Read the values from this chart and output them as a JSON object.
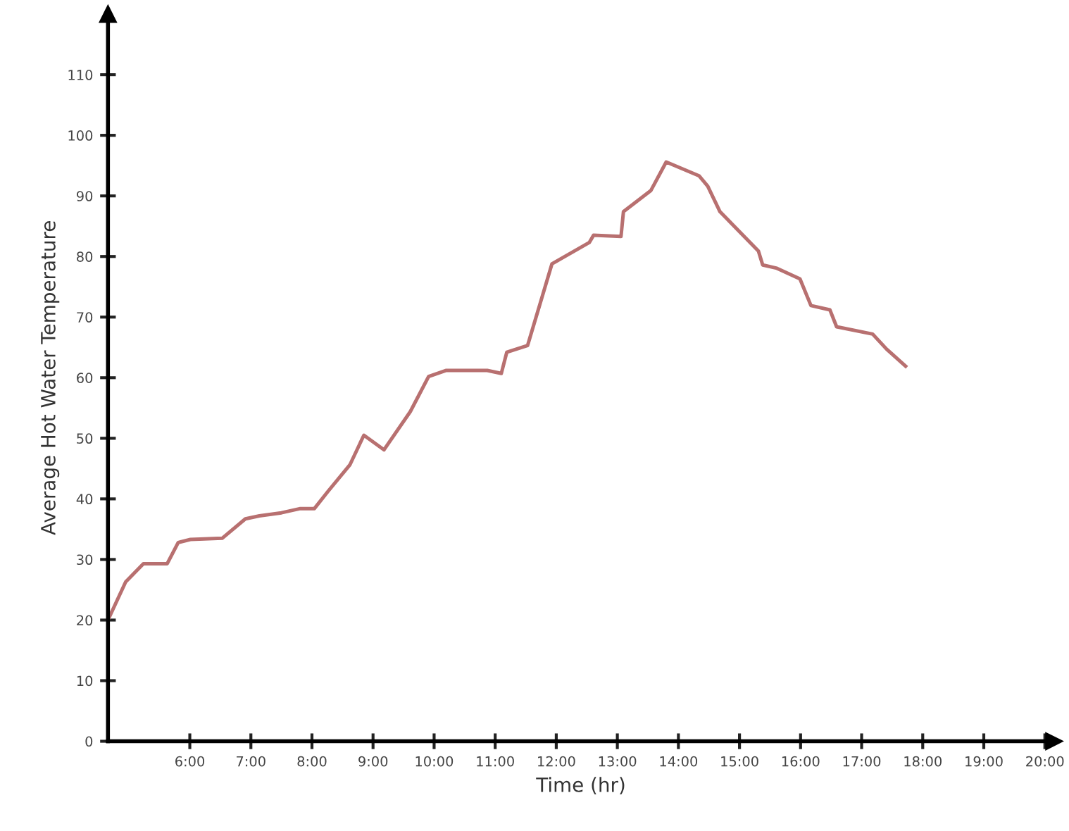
{
  "chart_data": {
    "type": "line",
    "xlabel": "Time (hr)",
    "ylabel": "Average Hot Water Temperature",
    "x": [
      4.66,
      4.95,
      5.24,
      5.63,
      5.81,
      6.01,
      6.53,
      6.91,
      7.14,
      7.5,
      7.81,
      8.04,
      8.26,
      8.62,
      8.85,
      9.18,
      9.61,
      9.91,
      10.2,
      10.87,
      11.1,
      11.19,
      11.53,
      11.93,
      12.54,
      12.61,
      13.06,
      13.1,
      13.55,
      13.8,
      14.34,
      14.48,
      14.68,
      15.31,
      15.38,
      15.6,
      15.99,
      16.17,
      16.48,
      16.59,
      17.18,
      17.41,
      17.72
    ],
    "series": [
      {
        "color": "#b87070",
        "values": [
          20,
          26.3,
          29.3,
          29.3,
          32.8,
          33.3,
          33.5,
          36.7,
          37.2,
          37.7,
          38.4,
          38.4,
          41.2,
          45.6,
          50.5,
          48.1,
          54.4,
          60.2,
          61.2,
          61.2,
          60.7,
          64.2,
          65.3,
          78.8,
          82.3,
          83.5,
          83.3,
          87.4,
          90.9,
          95.6,
          93.3,
          91.6,
          87.4,
          80.9,
          78.6,
          78.1,
          76.3,
          71.9,
          71.2,
          68.4,
          67.2,
          64.7,
          61.9
        ]
      }
    ],
    "xlim": [
      4.66,
      20.15
    ],
    "ylim": [
      0,
      120
    ],
    "xticks": [
      {
        "value": 6,
        "label": "6:00"
      },
      {
        "value": 7,
        "label": "7:00"
      },
      {
        "value": 8,
        "label": "8:00"
      },
      {
        "value": 9,
        "label": "9:00"
      },
      {
        "value": 10,
        "label": "10:00"
      },
      {
        "value": 11,
        "label": "11:00"
      },
      {
        "value": 12,
        "label": "12:00"
      },
      {
        "value": 13,
        "label": "13:00"
      },
      {
        "value": 14,
        "label": "14:00"
      },
      {
        "value": 15,
        "label": "15:00"
      },
      {
        "value": 16,
        "label": "16:00"
      },
      {
        "value": 17,
        "label": "17:00"
      },
      {
        "value": 18,
        "label": "18:00"
      },
      {
        "value": 19,
        "label": "19:00"
      },
      {
        "value": 20,
        "label": "20:00"
      }
    ],
    "yticks": [
      0,
      10,
      20,
      30,
      40,
      50,
      60,
      70,
      80,
      90,
      100,
      110
    ],
    "grid": false,
    "marker": "none",
    "line_style": "solid"
  }
}
